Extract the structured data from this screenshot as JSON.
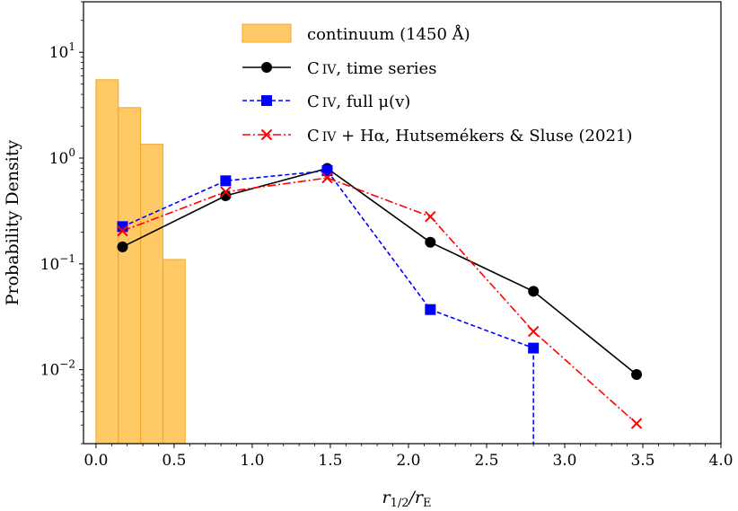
{
  "chart_data": {
    "type": "bar+line",
    "x_axis": {
      "label_base": "r",
      "label_sub1": "1/2",
      "label_mid": "/r",
      "label_sub2": "E",
      "range": [
        -0.08,
        4.0
      ],
      "ticks": [
        "0.0",
        "0.5",
        "1.0",
        "1.5",
        "2.0",
        "2.5",
        "3.0",
        "3.5",
        "4.0"
      ],
      "tick_values": [
        0.0,
        0.5,
        1.0,
        1.5,
        2.0,
        2.5,
        3.0,
        3.5,
        4.0
      ]
    },
    "y_axis": {
      "label": "Probability Density",
      "scale": "log",
      "range": [
        0.002,
        30
      ],
      "tick_exponents": [
        "−2",
        "−1",
        "0",
        "1"
      ],
      "tick_values": [
        0.01,
        0.1,
        1,
        10
      ],
      "tick_base": "10"
    },
    "grid": false,
    "legend_position": "top-center",
    "histogram": {
      "name": "continuum (1450 Å)",
      "color": "#FFC966",
      "edge_color": "#F5A623",
      "bins": [
        {
          "left": 0.0,
          "right": 0.143,
          "value": 5.5
        },
        {
          "left": 0.143,
          "right": 0.286,
          "value": 3.0
        },
        {
          "left": 0.286,
          "right": 0.429,
          "value": 1.35
        },
        {
          "left": 0.429,
          "right": 0.571,
          "value": 0.11
        }
      ]
    },
    "series": [
      {
        "name_main": "C",
        "name_roman": "IV",
        "name_rest": ", time series",
        "color": "#000000",
        "linestyle": "solid",
        "marker": "circle",
        "x": [
          0.17,
          0.83,
          1.48,
          2.14,
          2.8,
          3.46
        ],
        "y": [
          0.145,
          0.44,
          0.8,
          0.16,
          0.055,
          0.009
        ]
      },
      {
        "name_main": "C",
        "name_roman": "IV",
        "name_rest": ", full μ(v)",
        "color": "#0000FF",
        "linestyle": "dashed",
        "marker": "square",
        "x": [
          0.17,
          0.83,
          1.48,
          2.14,
          2.8
        ],
        "y": [
          0.225,
          0.61,
          0.76,
          0.037,
          0.016
        ],
        "drop_to_bottom_x": 2.8
      },
      {
        "name_main": "C",
        "name_roman": "IV",
        "name_rest": " + Hα, Hutsemékers & Sluse (2021)",
        "color": "#FF0000",
        "linestyle": "dashdot",
        "marker": "x",
        "x": [
          0.17,
          0.83,
          1.48,
          2.14,
          2.8,
          3.46
        ],
        "y": [
          0.205,
          0.48,
          0.65,
          0.28,
          0.023,
          0.0031
        ]
      }
    ]
  }
}
